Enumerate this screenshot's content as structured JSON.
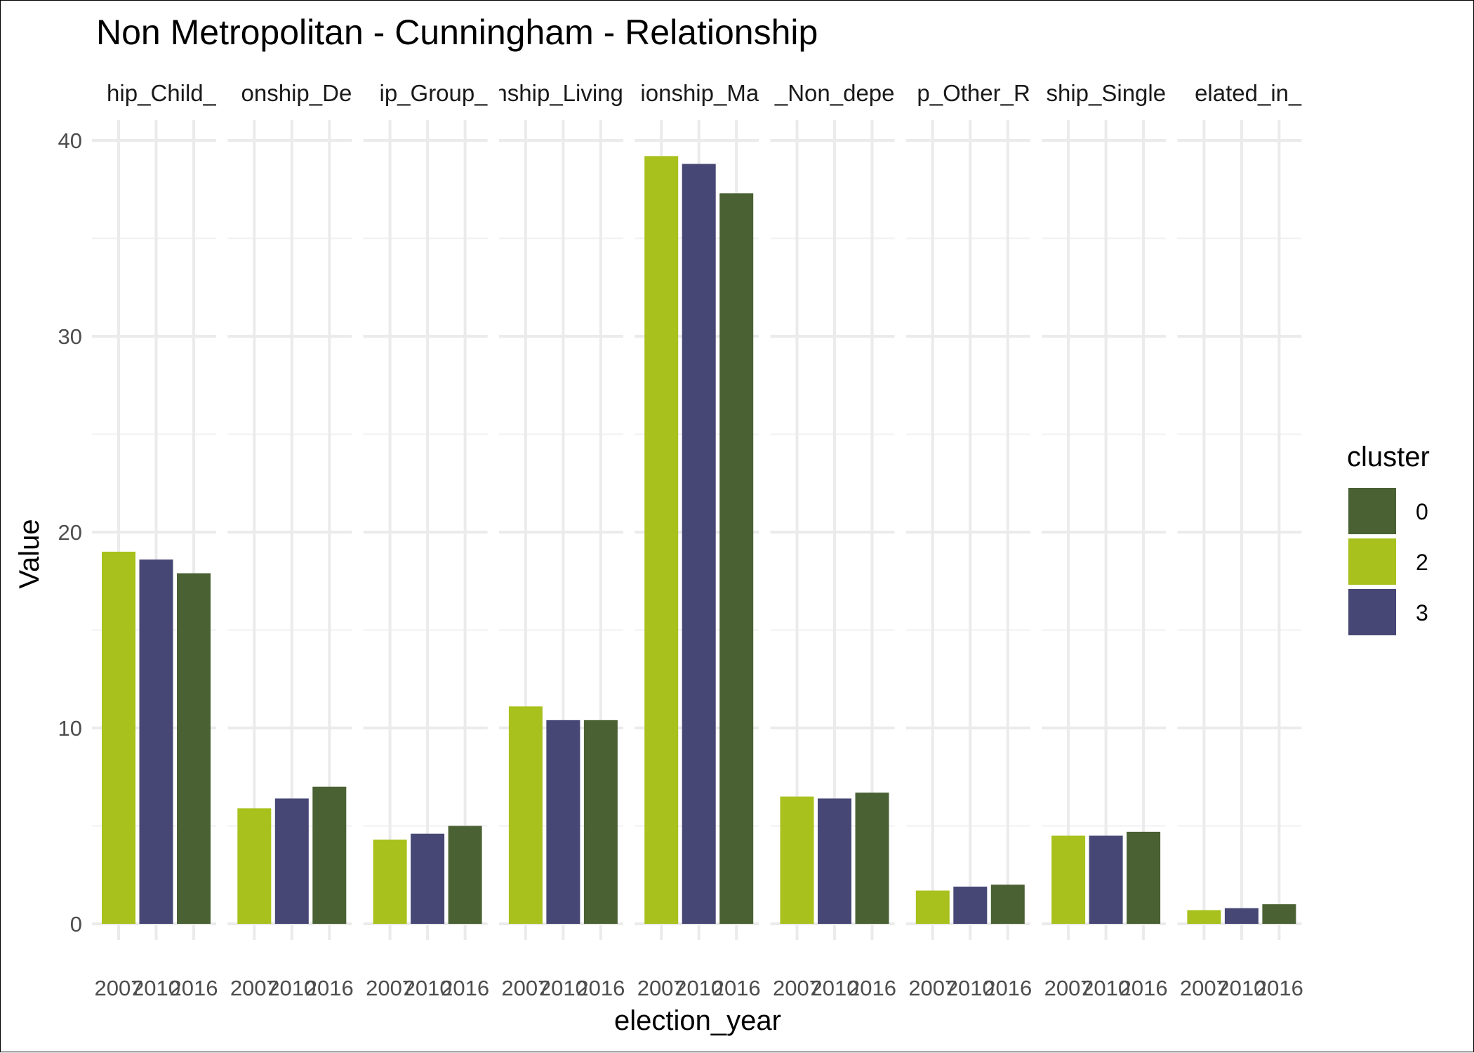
{
  "chart_data": {
    "type": "bar",
    "title": "Non Metropolitan - Cunningham - Relationship",
    "xlabel": "election_year",
    "ylabel": "Value",
    "ylim": [
      0,
      41
    ],
    "yticks": [
      0,
      10,
      20,
      30,
      40
    ],
    "x_tick_labels": [
      "2007",
      "2010",
      "2016"
    ],
    "facets": [
      {
        "label": "hip_Child_",
        "values": [
          19.0,
          18.6,
          17.9
        ]
      },
      {
        "label": "onship_De",
        "values": [
          5.9,
          6.4,
          7.0
        ]
      },
      {
        "label": "ip_Group_",
        "values": [
          4.3,
          4.6,
          5.0
        ]
      },
      {
        "label": "nship_Living",
        "values": [
          11.1,
          10.4,
          10.4
        ]
      },
      {
        "label": "ionship_Ma",
        "values": [
          39.2,
          38.8,
          37.3
        ]
      },
      {
        "label": "_Non_depe",
        "values": [
          6.5,
          6.4,
          6.7
        ]
      },
      {
        "label": "p_Other_R",
        "values": [
          1.7,
          1.9,
          2.0
        ]
      },
      {
        "label": "ship_Single",
        "values": [
          4.5,
          4.5,
          4.7
        ]
      },
      {
        "label": "elated_in_",
        "values": [
          0.7,
          0.8,
          1.0
        ]
      }
    ],
    "bar_clusters": [
      "2",
      "3",
      "0"
    ],
    "grid": true,
    "legend": {
      "title": "cluster",
      "position": "right",
      "items": [
        {
          "label": "0",
          "color": "#4a6133"
        },
        {
          "label": "2",
          "color": "#a8c11c"
        },
        {
          "label": "3",
          "color": "#464775"
        }
      ]
    }
  }
}
